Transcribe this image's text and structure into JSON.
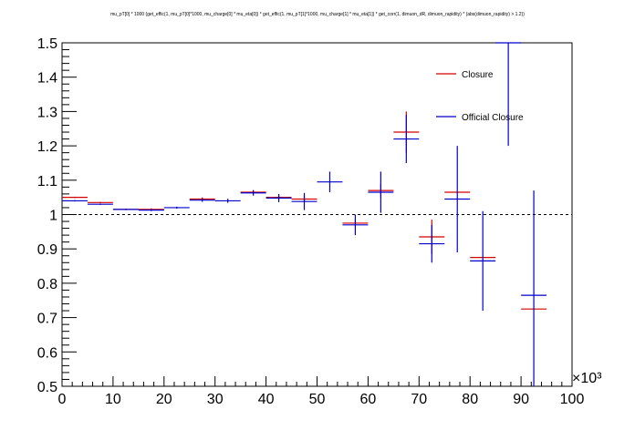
{
  "chart_data": {
    "type": "scatter",
    "title": "mu_pT[0] * 1000  (get_effic(1, mu_pT[0]*1000, mu_charge[0] *  mu_eta[0]) * get_effic(1, mu_pT[1]*1000, mu_charge[1] *  mu_eta[1]) * get_corr(1, dimuon_dR, dimuon_rapidity) * (abs(dimuon_rapidity) > 1.2))",
    "xlabel": "",
    "ylabel": "",
    "x_multiplier_label": "×10³",
    "xlim": [
      0,
      100
    ],
    "ylim": [
      0.5,
      1.5
    ],
    "x_ticks": [
      0,
      10,
      20,
      30,
      40,
      50,
      60,
      70,
      80,
      90,
      100
    ],
    "y_ticks": [
      0.5,
      0.6,
      0.7,
      0.8,
      0.9,
      1,
      1.1,
      1.2,
      1.3,
      1.4,
      1.5
    ],
    "reference_line": 1.0,
    "legend_position": "top-right",
    "series": [
      {
        "name": "Closure",
        "color": "#d40000",
        "x": [
          2.5,
          7.5,
          12.5,
          17.5,
          22.5,
          27.5,
          32.5,
          37.5,
          42.5,
          47.5,
          52.5,
          57.5,
          62.5,
          67.5,
          72.5,
          77.5,
          82.5,
          87.5,
          92.5
        ],
        "xerr": 2.5,
        "y": [
          1.05,
          1.035,
          1.015,
          1.015,
          null,
          1.045,
          null,
          1.065,
          1.05,
          1.045,
          null,
          0.975,
          1.07,
          1.24,
          0.935,
          1.065,
          0.875,
          null,
          0.725
        ],
        "yerr": [
          0.002,
          0.002,
          0.002,
          0.003,
          null,
          0.005,
          null,
          0.006,
          0.008,
          0.01,
          null,
          0.01,
          0.02,
          0.06,
          0.05,
          0.0,
          0.0,
          null,
          0.0
        ]
      },
      {
        "name": "Official Closure",
        "color": "#0000cc",
        "x": [
          2.5,
          7.5,
          12.5,
          17.5,
          22.5,
          27.5,
          32.5,
          37.5,
          42.5,
          47.5,
          52.5,
          57.5,
          62.5,
          67.5,
          72.5,
          77.5,
          82.5,
          87.5,
          92.5
        ],
        "xerr": 2.5,
        "y": [
          1.04,
          1.03,
          1.015,
          1.013,
          1.02,
          1.042,
          1.04,
          1.063,
          1.048,
          1.038,
          1.095,
          0.97,
          1.065,
          1.22,
          0.915,
          1.045,
          0.865,
          1.5,
          0.765
        ],
        "yerr": [
          0.002,
          0.002,
          0.002,
          0.003,
          0.003,
          0.005,
          0.006,
          0.008,
          0.012,
          0.025,
          0.03,
          0.03,
          0.06,
          0.07,
          0.055,
          0.155,
          0.145,
          0.3,
          0.305
        ]
      }
    ]
  }
}
